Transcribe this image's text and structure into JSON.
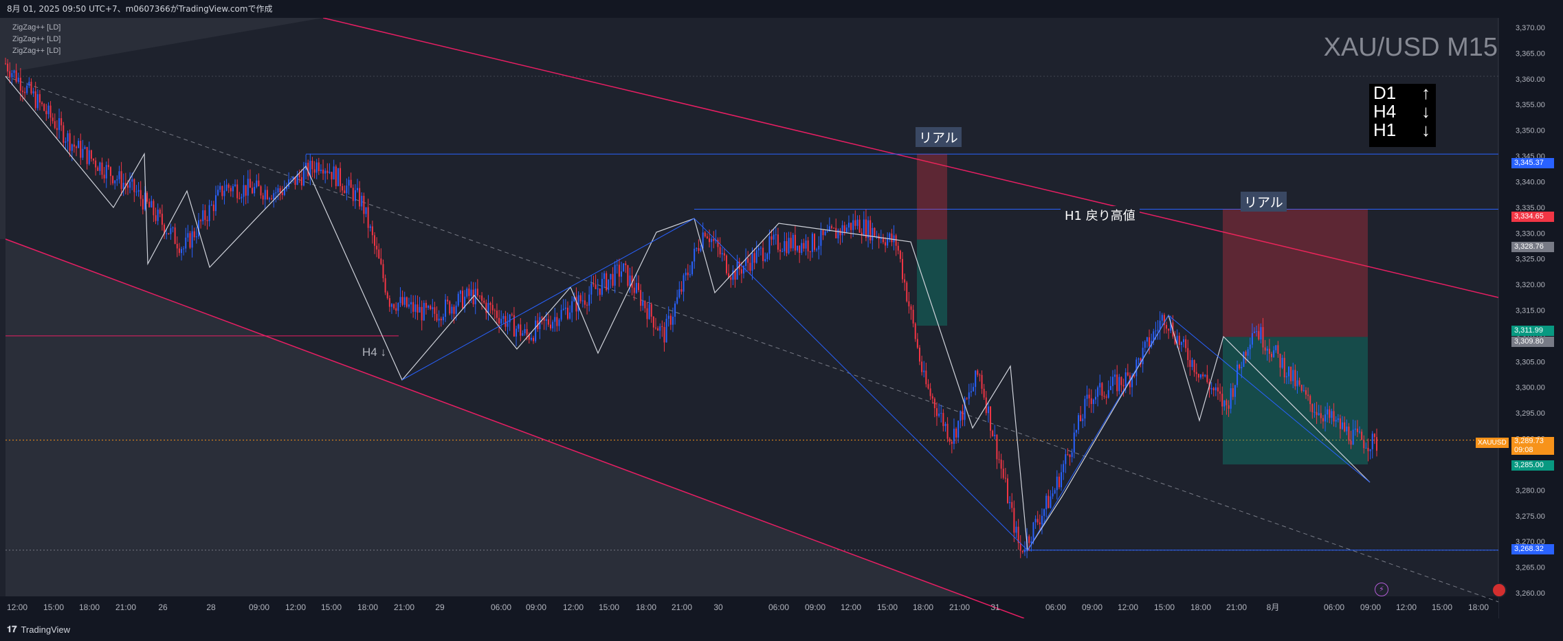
{
  "header": {
    "info": "8月 01, 2025 09:50 UTC+7、m0607366がTradingView.comで作成"
  },
  "footer": {
    "brand": "TradingView",
    "brand_icon": "tradingview-logo-icon"
  },
  "legend": [
    "ZigZag++ [LD]",
    "ZigZag++ [LD]",
    "ZigZag++ [LD]"
  ],
  "title": "XAU/USD M15",
  "trend_box": [
    {
      "tf": "D1",
      "arrow": "↑"
    },
    {
      "tf": "H4",
      "arrow": "↓"
    },
    {
      "tf": "H1",
      "arrow": "↓"
    }
  ],
  "annotations": {
    "real_1": "リアル",
    "real_2": "リアル",
    "h1_label": "H1 戻り高値",
    "h4_label": "H4 ↓"
  },
  "price_tags": {
    "p1": "3,345.37",
    "p2": "3,334.65",
    "p3": "3,328.76",
    "p4": "3,311.99",
    "p5": "3,309.80",
    "p6": "3,285.00",
    "p7": "3,268.32",
    "current_price": "3,289.73",
    "current_time": "09:08",
    "symbol": "XAUUSD"
  },
  "colors": {
    "bg": "#131722",
    "up": "#2962ff",
    "down": "#f23645",
    "channel": "#e91e63",
    "level": "#2962ff",
    "current": "#f7931a"
  },
  "chart_data": {
    "type": "candlestick",
    "symbol": "XAU/USD",
    "timeframe": "M15",
    "ylim": [
      3260,
      3370
    ],
    "y_ticks": [
      3260,
      3265,
      3270,
      3275,
      3280,
      3285,
      3290,
      3295,
      3300,
      3305,
      3310,
      3315,
      3320,
      3325,
      3330,
      3335,
      3340,
      3345,
      3350,
      3355,
      3360,
      3365,
      3370
    ],
    "x_ticks": [
      "12:00",
      "15:00",
      "18:00",
      "21:00",
      "26",
      "28",
      "09:00",
      "12:00",
      "15:00",
      "18:00",
      "21:00",
      "29",
      "06:00",
      "09:00",
      "12:00",
      "15:00",
      "18:00",
      "21:00",
      "30",
      "06:00",
      "09:00",
      "12:00",
      "15:00",
      "18:00",
      "21:00",
      "31",
      "06:00",
      "09:00",
      "12:00",
      "15:00",
      "18:00",
      "21:00",
      "8月",
      "06:00",
      "09:00",
      "12:00",
      "15:00",
      "18:00"
    ],
    "path_x": [
      0,
      0.05,
      0.095,
      0.13,
      0.16,
      0.2,
      0.23,
      0.26,
      0.28,
      0.31,
      0.34,
      0.38,
      0.42,
      0.45,
      0.48,
      0.51,
      0.53,
      0.56,
      0.59,
      0.62,
      0.65,
      0.67,
      0.69,
      0.71,
      0.74,
      0.765,
      0.79,
      0.82,
      0.845,
      0.86,
      0.89,
      0.91,
      0.93,
      0.95,
      0.965,
      0.985,
      1.0
    ],
    "path_y": [
      3363,
      3347,
      3338,
      3327,
      3339,
      3338,
      3344,
      3336,
      3317,
      3314,
      3318,
      3310,
      3317,
      3323,
      3310,
      3331,
      3322,
      3328,
      3328,
      3332,
      3328,
      3301,
      3290,
      3303,
      3268,
      3280,
      3298,
      3302,
      3314,
      3307,
      3296,
      3312,
      3305,
      3297,
      3294,
      3290,
      3289
    ],
    "current_price": 3289.73,
    "levels": {
      "h4_high": 3345.37,
      "h1_high": 3334.65,
      "low": 3268.32,
      "h4_line": 3310.0
    },
    "positions": [
      {
        "entry": 3328.76,
        "stop": 3345.37,
        "target": 3311.99
      },
      {
        "entry": 3309.8,
        "stop": 3334.65,
        "target": 3285.0
      }
    ]
  }
}
